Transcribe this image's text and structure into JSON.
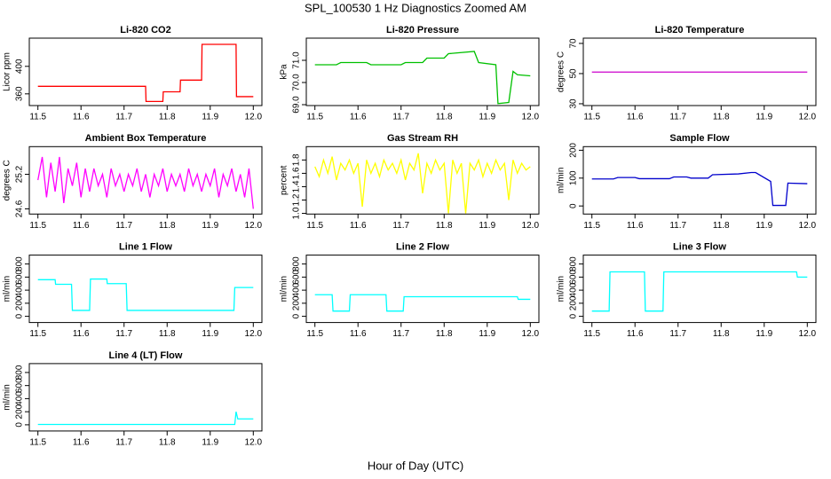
{
  "title": "SPL_100530  1 Hz Diagnostics Zoomed AM",
  "xlabel": "Hour of Day (UTC)",
  "chart_data": [
    {
      "type": "line",
      "title": "Li-820 CO2",
      "ylabel": "Licor ppm",
      "xlim": [
        11.48,
        12.02
      ],
      "xticks": [
        11.5,
        11.6,
        11.7,
        11.8,
        11.9,
        {
          "value": 12,
          "label": "12.0"
        }
      ],
      "ylim": [
        343,
        441
      ],
      "yticks": [
        360,
        400
      ],
      "series": [
        {
          "color": "#ff0000",
          "x": [
            11.5,
            11.75,
            11.751,
            11.79,
            11.791,
            11.83,
            11.831,
            11.88,
            11.881,
            11.96,
            11.961,
            12.0
          ],
          "values": [
            371,
            371,
            349,
            349,
            363,
            363,
            380,
            380,
            432,
            432,
            356,
            356
          ]
        }
      ]
    },
    {
      "type": "line",
      "title": "Li-820 Pressure",
      "ylabel": "kPa",
      "xlim": [
        11.48,
        12.02
      ],
      "xticks": [
        11.5,
        11.6,
        11.7,
        11.8,
        11.9,
        {
          "value": 12,
          "label": "12.0"
        }
      ],
      "ylim": [
        68.96,
        72.0
      ],
      "yticks": [
        {
          "value": 69,
          "label": "69.0"
        },
        {
          "value": 70,
          "label": "70.0"
        },
        {
          "value": 71,
          "label": "71.0"
        }
      ],
      "series": [
        {
          "color": "#00c000",
          "x": [
            11.5,
            11.55,
            11.56,
            11.62,
            11.63,
            11.7,
            11.71,
            11.75,
            11.76,
            11.8,
            11.81,
            11.87,
            11.88,
            11.92,
            11.925,
            11.95,
            11.96,
            11.97,
            12.0
          ],
          "values": [
            70.8,
            70.8,
            70.9,
            70.9,
            70.8,
            70.8,
            70.9,
            70.9,
            71.1,
            71.1,
            71.3,
            71.4,
            70.9,
            70.8,
            69.05,
            69.1,
            70.5,
            70.35,
            70.3
          ]
        }
      ]
    },
    {
      "type": "line",
      "title": "Li-820 Temperature",
      "ylabel": "degrees C",
      "xlim": [
        11.48,
        12.02
      ],
      "xticks": [
        11.5,
        11.6,
        11.7,
        11.8,
        11.9,
        {
          "value": 12,
          "label": "12.0"
        }
      ],
      "ylim": [
        28.8,
        73.5
      ],
      "yticks": [
        30,
        50,
        70
      ],
      "series": [
        {
          "color": "#cc00cc",
          "x": [
            11.5,
            12.0
          ],
          "values": [
            51,
            51
          ]
        }
      ]
    },
    {
      "type": "line",
      "title": "Ambient Box Temperature",
      "ylabel": "degrees C",
      "xlim": [
        11.48,
        12.02
      ],
      "xticks": [
        11.5,
        11.6,
        11.7,
        11.8,
        11.9,
        {
          "value": 12,
          "label": "12.0"
        }
      ],
      "ylim": [
        24.51,
        25.68
      ],
      "yticks": [
        24.6,
        25.2
      ],
      "series": [
        {
          "color": "#ff00ff",
          "x": [
            11.5,
            11.51,
            11.52,
            11.53,
            11.54,
            11.55,
            11.56,
            11.57,
            11.58,
            11.59,
            11.6,
            11.61,
            11.62,
            11.63,
            11.64,
            11.65,
            11.66,
            11.67,
            11.68,
            11.69,
            11.7,
            11.71,
            11.72,
            11.73,
            11.74,
            11.75,
            11.76,
            11.77,
            11.78,
            11.79,
            11.8,
            11.81,
            11.82,
            11.83,
            11.84,
            11.85,
            11.86,
            11.87,
            11.88,
            11.89,
            11.9,
            11.91,
            11.92,
            11.93,
            11.94,
            11.95,
            11.96,
            11.97,
            11.98,
            11.99,
            12.0
          ],
          "values": [
            25.1,
            25.5,
            24.8,
            25.4,
            24.9,
            25.5,
            24.7,
            25.3,
            25.0,
            25.4,
            24.8,
            25.3,
            24.9,
            25.3,
            25.0,
            25.2,
            24.8,
            25.3,
            25.0,
            25.2,
            24.9,
            25.2,
            25.0,
            25.3,
            24.9,
            25.2,
            24.8,
            25.2,
            25.0,
            25.3,
            24.9,
            25.2,
            25.0,
            25.2,
            24.9,
            25.3,
            25.0,
            25.2,
            24.9,
            25.2,
            25.0,
            25.3,
            24.8,
            25.2,
            25.0,
            25.3,
            24.9,
            25.2,
            24.8,
            25.3,
            24.6
          ]
        }
      ]
    },
    {
      "type": "line",
      "title": "Gas Stream RH",
      "ylabel": "percent",
      "xlim": [
        11.48,
        12.02
      ],
      "xticks": [
        11.5,
        11.6,
        11.7,
        11.8,
        11.9,
        {
          "value": 12,
          "label": "12.0"
        }
      ],
      "ylim": [
        0.99,
        2.0
      ],
      "yticks": [
        {
          "value": 1,
          "label": "1.0"
        },
        1.2,
        1.4,
        1.6,
        1.8
      ],
      "series": [
        {
          "color": "#ffff00",
          "x": [
            11.5,
            11.51,
            11.52,
            11.53,
            11.54,
            11.55,
            11.56,
            11.57,
            11.58,
            11.59,
            11.6,
            11.61,
            11.62,
            11.63,
            11.64,
            11.65,
            11.66,
            11.67,
            11.68,
            11.69,
            11.7,
            11.71,
            11.72,
            11.73,
            11.74,
            11.75,
            11.76,
            11.77,
            11.78,
            11.79,
            11.8,
            11.81,
            11.82,
            11.83,
            11.84,
            11.85,
            11.86,
            11.87,
            11.88,
            11.89,
            11.9,
            11.91,
            11.92,
            11.93,
            11.94,
            11.95,
            11.96,
            11.97,
            11.98,
            11.99,
            12.0
          ],
          "values": [
            1.7,
            1.55,
            1.8,
            1.6,
            1.85,
            1.5,
            1.75,
            1.65,
            1.8,
            1.6,
            1.75,
            1.1,
            1.8,
            1.6,
            1.75,
            1.55,
            1.8,
            1.65,
            1.75,
            1.6,
            1.8,
            1.5,
            1.75,
            1.65,
            1.9,
            1.3,
            1.75,
            1.6,
            1.8,
            1.65,
            1.75,
            1.0,
            1.8,
            1.6,
            1.75,
            1.0,
            1.75,
            1.65,
            1.8,
            1.55,
            1.75,
            1.6,
            1.8,
            1.65,
            1.75,
            1.2,
            1.8,
            1.6,
            1.75,
            1.65,
            1.7
          ]
        }
      ]
    },
    {
      "type": "line",
      "title": "Sample Flow",
      "ylabel": "ml/min",
      "xlim": [
        11.48,
        12.02
      ],
      "xticks": [
        11.5,
        11.6,
        11.7,
        11.8,
        11.9,
        {
          "value": 12,
          "label": "12.0"
        }
      ],
      "ylim": [
        -29,
        213
      ],
      "yticks": [
        0,
        100,
        200
      ],
      "series": [
        {
          "color": "#0000cc",
          "x": [
            11.5,
            11.55,
            11.56,
            11.6,
            11.61,
            11.68,
            11.69,
            11.72,
            11.73,
            11.77,
            11.78,
            11.84,
            11.87,
            11.88,
            11.915,
            11.92,
            11.95,
            11.955,
            12.0
          ],
          "values": [
            97,
            97,
            102,
            102,
            98,
            98,
            104,
            104,
            100,
            100,
            112,
            115,
            120,
            120,
            88,
            2,
            2,
            82,
            80
          ]
        }
      ]
    },
    {
      "type": "line",
      "title": "Line 1 Flow",
      "ylabel": "ml/min",
      "xlim": [
        11.48,
        12.02
      ],
      "xticks": [
        11.5,
        11.6,
        11.7,
        11.8,
        11.9,
        {
          "value": 12,
          "label": "12.0"
        }
      ],
      "ylim": [
        -95,
        936
      ],
      "yticks": [
        0,
        200,
        400,
        600,
        800
      ],
      "series": [
        {
          "color": "#00ffff",
          "x": [
            11.5,
            11.54,
            11.541,
            11.578,
            11.58,
            11.62,
            11.622,
            11.66,
            11.661,
            11.705,
            11.707,
            11.955,
            11.957,
            12.0
          ],
          "values": [
            560,
            560,
            490,
            490,
            90,
            90,
            570,
            570,
            500,
            500,
            90,
            90,
            440,
            440
          ]
        }
      ]
    },
    {
      "type": "line",
      "title": "Line 2 Flow",
      "ylabel": "ml/min",
      "xlim": [
        11.48,
        12.02
      ],
      "xticks": [
        11.5,
        11.6,
        11.7,
        11.8,
        11.9,
        {
          "value": 12,
          "label": "12.0"
        }
      ],
      "ylim": [
        -95,
        936
      ],
      "yticks": [
        0,
        200,
        400,
        600,
        800
      ],
      "series": [
        {
          "color": "#00ffff",
          "x": [
            11.5,
            11.54,
            11.542,
            11.58,
            11.582,
            11.665,
            11.667,
            11.705,
            11.707,
            11.97,
            11.972,
            12.0
          ],
          "values": [
            330,
            330,
            80,
            80,
            330,
            330,
            80,
            80,
            300,
            300,
            260,
            260
          ]
        }
      ]
    },
    {
      "type": "line",
      "title": "Line 3 Flow",
      "ylabel": "ml/min",
      "xlim": [
        11.48,
        12.02
      ],
      "xticks": [
        11.5,
        11.6,
        11.7,
        11.8,
        11.9,
        {
          "value": 12,
          "label": "12.0"
        }
      ],
      "ylim": [
        -95,
        936
      ],
      "yticks": [
        0,
        200,
        400,
        600,
        800
      ],
      "series": [
        {
          "color": "#00ffff",
          "x": [
            11.5,
            11.54,
            11.542,
            11.622,
            11.624,
            11.665,
            11.667,
            11.975,
            11.977,
            12.0
          ],
          "values": [
            80,
            80,
            680,
            680,
            80,
            80,
            680,
            680,
            600,
            600
          ]
        }
      ]
    },
    {
      "type": "line",
      "title": "Line 4 (LT) Flow",
      "ylabel": "ml/min",
      "xlim": [
        11.48,
        12.02
      ],
      "xticks": [
        11.5,
        11.6,
        11.7,
        11.8,
        11.9,
        {
          "value": 12,
          "label": "12.0"
        }
      ],
      "ylim": [
        -95,
        936
      ],
      "yticks": [
        0,
        200,
        400,
        600,
        800
      ],
      "series": [
        {
          "color": "#00ffff",
          "x": [
            11.5,
            11.957,
            11.96,
            11.964,
            12.0
          ],
          "values": [
            5,
            5,
            200,
            90,
            90
          ]
        }
      ]
    }
  ]
}
